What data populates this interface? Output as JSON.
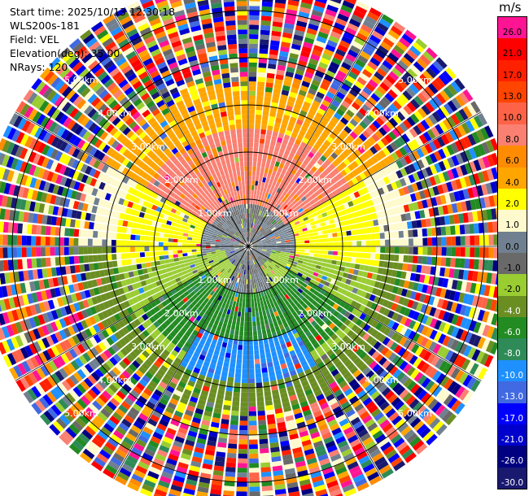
{
  "info": {
    "start_time": "Start time: 2025/10/13 12:30:18",
    "station": "WLS200s-181",
    "field": "Field: VEL",
    "elevation": "Elevation(deg): 35.00",
    "nrays": "NRays: 120"
  },
  "colorbar": {
    "unit": "m/s",
    "levels": [
      {
        "label": "26.0",
        "color": "#ff1493"
      },
      {
        "label": "21.0",
        "color": "#ff0000"
      },
      {
        "label": "17.0",
        "color": "#ff2000"
      },
      {
        "label": "13.0",
        "color": "#ff4500"
      },
      {
        "label": "10.0",
        "color": "#ff6347"
      },
      {
        "label": "8.0",
        "color": "#fa8072"
      },
      {
        "label": "6.0",
        "color": "#ff8c00"
      },
      {
        "label": "4.0",
        "color": "#ffa500"
      },
      {
        "label": "2.0",
        "color": "#ffff00"
      },
      {
        "label": "1.0",
        "color": "#fffacd"
      },
      {
        "label": "0.0",
        "color": "#708090"
      },
      {
        "label": "-1.0",
        "color": "#696969"
      },
      {
        "label": "-2.0",
        "color": "#9acd32"
      },
      {
        "label": "-4.0",
        "color": "#6b8e23"
      },
      {
        "label": "-6.0",
        "color": "#228b22"
      },
      {
        "label": "-8.0",
        "color": "#2e8b57"
      },
      {
        "label": "-10.0",
        "color": "#1e90ff"
      },
      {
        "label": "-13.0",
        "color": "#4169e1"
      },
      {
        "label": "-17.0",
        "color": "#0000ff"
      },
      {
        "label": "-21.0",
        "color": "#0000cd"
      },
      {
        "label": "-26.0",
        "color": "#000080"
      },
      {
        "label": "-30.0",
        "color": "#191970"
      }
    ]
  },
  "chart_data": {
    "type": "heatmap",
    "projection": "polar PPI",
    "field": "VEL",
    "units": "m/s",
    "nrays": 120,
    "range_rings_km": [
      1,
      2,
      3,
      4,
      5
    ],
    "ring_labels": [
      "1.00km",
      "2.00km",
      "3.00km",
      "4.00km",
      "5.00km"
    ],
    "max_range_km": 5.7,
    "spokes_deg": [
      0,
      30,
      60,
      90,
      120,
      150,
      180,
      210,
      240,
      270,
      300,
      330
    ],
    "velocity_regions": [
      {
        "azimuth_deg": [
          300,
          60
        ],
        "range_km": [
          0.9,
          2.5
        ],
        "value": 8.0
      },
      {
        "azimuth_deg": [
          300,
          60
        ],
        "range_km": [
          2.5,
          3.6
        ],
        "value": 4.0
      },
      {
        "azimuth_deg": [
          240,
          300
        ],
        "range_km": [
          1.0,
          2.8
        ],
        "value": 2.0
      },
      {
        "azimuth_deg": [
          60,
          120
        ],
        "range_km": [
          1.0,
          2.8
        ],
        "value": 2.0
      },
      {
        "azimuth_deg": [
          240,
          300
        ],
        "range_km": [
          0.2,
          1.0
        ],
        "value": 0.0
      },
      {
        "azimuth_deg": [
          60,
          120
        ],
        "range_km": [
          0.2,
          1.0
        ],
        "value": 0.0
      },
      {
        "azimuth_deg": [
          100,
          150
        ],
        "range_km": [
          0.5,
          2.8
        ],
        "value": -2.0
      },
      {
        "azimuth_deg": [
          210,
          260
        ],
        "range_km": [
          0.5,
          2.8
        ],
        "value": -2.0
      },
      {
        "azimuth_deg": [
          120,
          240
        ],
        "range_km": [
          1.0,
          2.6
        ],
        "value": -6.0
      },
      {
        "azimuth_deg": [
          150,
          210
        ],
        "range_km": [
          2.0,
          2.9
        ],
        "value": -10.0
      }
    ],
    "beyond_range_km": 3.3,
    "beyond_note": "noise"
  }
}
